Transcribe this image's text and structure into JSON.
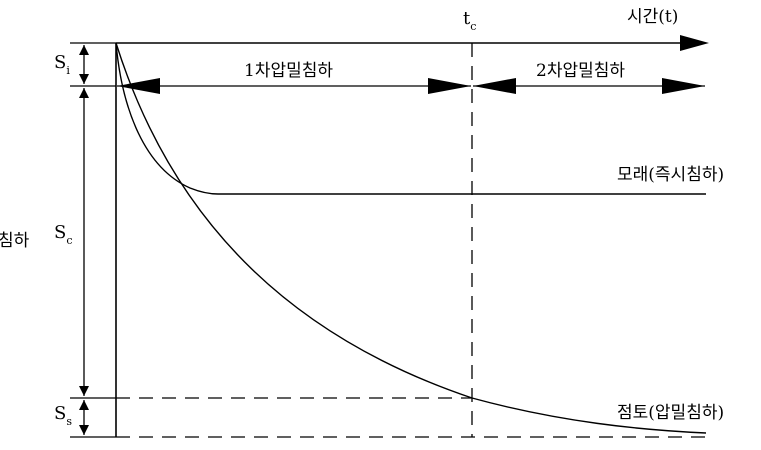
{
  "axis": {
    "time_label": "시간(t)",
    "settlement_label": "침하"
  },
  "tc": {
    "base": "t",
    "sub": "c"
  },
  "phases": {
    "primary": "1차압밀침하",
    "secondary": "2차압밀침하"
  },
  "curves": {
    "sand": "모래(즉시침하)",
    "clay": "점토(압밀침하)"
  },
  "components": {
    "si": {
      "base": "S",
      "sub": "i"
    },
    "sc": {
      "base": "S",
      "sub": "c"
    },
    "ss": {
      "base": "S",
      "sub": "s"
    }
  }
}
